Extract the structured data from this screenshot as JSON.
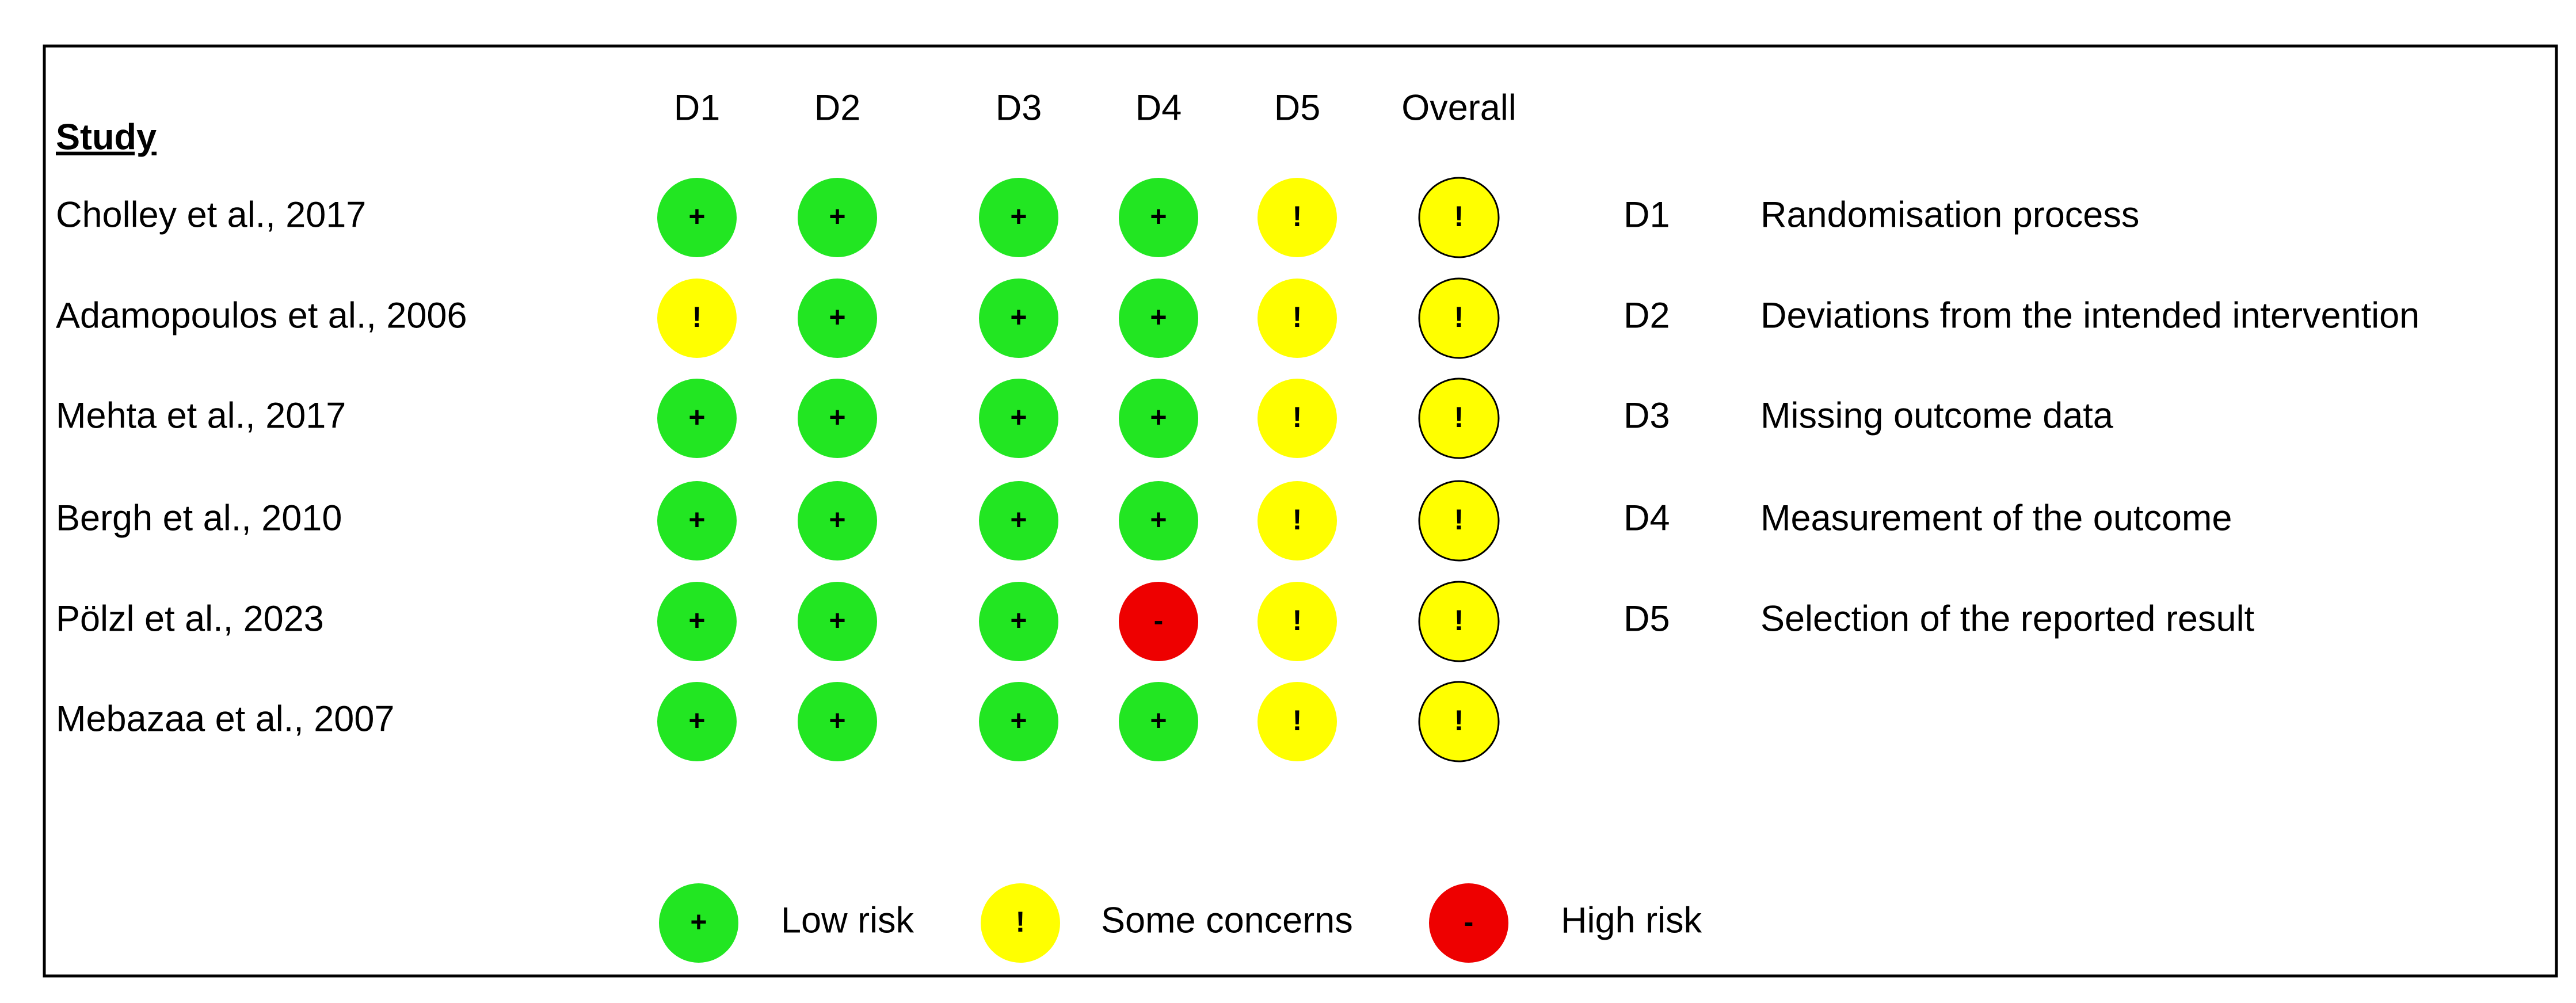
{
  "table": {
    "study_header": "Study",
    "columns": [
      "D1",
      "D2",
      "D3",
      "D4",
      "D5",
      "Overall"
    ],
    "rows": [
      {
        "study": "Cholley et al., 2017",
        "judgements": [
          "+",
          "+",
          "+",
          "+",
          "!",
          "!"
        ]
      },
      {
        "study": "Adamopoulos et al., 2006",
        "judgements": [
          "!",
          "+",
          "+",
          "+",
          "!",
          "!"
        ]
      },
      {
        "study": "Mehta et al., 2017",
        "judgements": [
          "+",
          "+",
          "+",
          "+",
          "!",
          "!"
        ]
      },
      {
        "study": "Bergh et al., 2010",
        "judgements": [
          "+",
          "+",
          "+",
          "+",
          "!",
          "!"
        ]
      },
      {
        "study": "Pölzl et al., 2023",
        "judgements": [
          "+",
          "+",
          "+",
          "-",
          "!",
          "!"
        ]
      },
      {
        "study": "Mebazaa et al., 2007",
        "judgements": [
          "+",
          "+",
          "+",
          "+",
          "!",
          "!"
        ]
      }
    ]
  },
  "domains": [
    {
      "code": "D1",
      "label": "Randomisation process"
    },
    {
      "code": "D2",
      "label": "Deviations from the intended intervention"
    },
    {
      "code": "D3",
      "label": "Missing outcome data"
    },
    {
      "code": "D4",
      "label": "Measurement of the outcome"
    },
    {
      "code": "D5",
      "label": "Selection of the reported result"
    }
  ],
  "key": [
    {
      "symbol": "+",
      "label": "Low risk",
      "color": "#22e622"
    },
    {
      "symbol": "!",
      "label": "Some concerns",
      "color": "#ffff00"
    },
    {
      "symbol": "-",
      "label": "High risk",
      "color": "#ee0000"
    }
  ]
}
